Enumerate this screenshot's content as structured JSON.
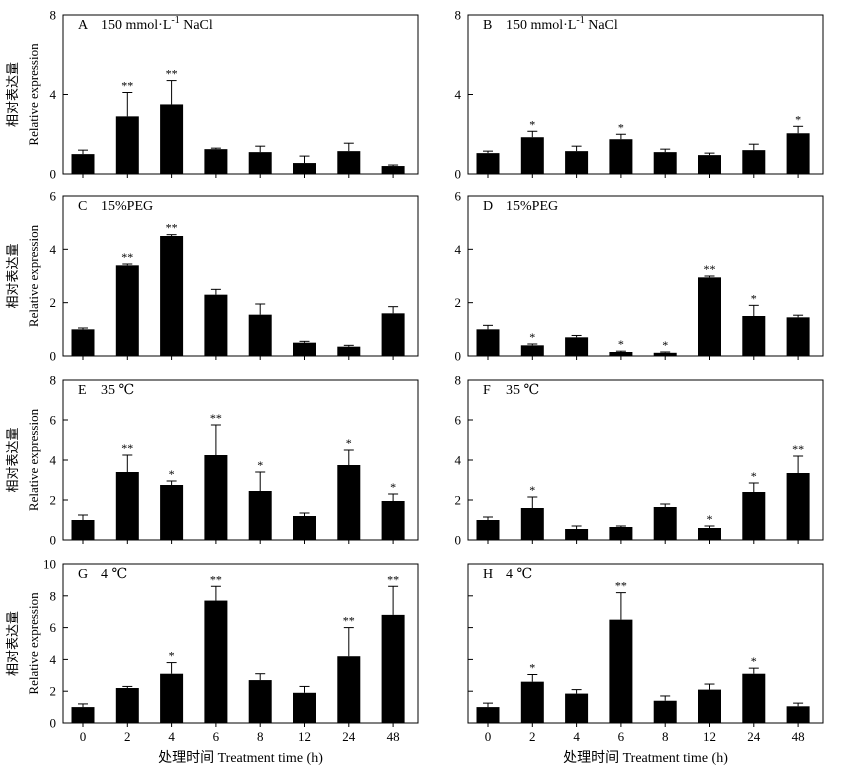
{
  "chart_data": [
    {
      "type": "bar",
      "panel": "A",
      "treatment": "150 mmol·L",
      "sup": "-1",
      "suffix": " NaCl",
      "ylabel_cn": "相对表达量",
      "ylabel_en": "Relative expression",
      "ylim": [
        0,
        8
      ],
      "yticks": [
        "0",
        "4",
        "8"
      ],
      "categories": [
        "0",
        "2",
        "4",
        "6",
        "8",
        "12",
        "24",
        "48"
      ],
      "values": [
        1.0,
        2.9,
        3.5,
        1.25,
        1.1,
        0.55,
        1.15,
        0.4
      ],
      "errors": [
        0.2,
        1.2,
        1.2,
        0.05,
        0.3,
        0.35,
        0.4,
        0.05
      ],
      "significance": [
        "",
        "**",
        "**",
        "",
        "",
        "",
        "",
        ""
      ]
    },
    {
      "type": "bar",
      "panel": "B",
      "treatment": "150 mmol·L",
      "sup": "-1",
      "suffix": " NaCl",
      "ylabel_cn": "",
      "ylabel_en": "",
      "ylim": [
        0,
        8
      ],
      "yticks": [
        "0",
        "4",
        "8"
      ],
      "categories": [
        "0",
        "2",
        "4",
        "6",
        "8",
        "12",
        "24",
        "48"
      ],
      "values": [
        1.05,
        1.85,
        1.15,
        1.75,
        1.1,
        0.95,
        1.2,
        2.05
      ],
      "errors": [
        0.1,
        0.3,
        0.25,
        0.25,
        0.15,
        0.1,
        0.3,
        0.35
      ],
      "significance": [
        "",
        "*",
        "",
        "*",
        "",
        "",
        "",
        "*"
      ]
    },
    {
      "type": "bar",
      "panel": "C",
      "treatment": "15%PEG",
      "sup": "",
      "suffix": "",
      "ylabel_cn": "相对表达量",
      "ylabel_en": "Relative expression",
      "ylim": [
        0,
        6
      ],
      "yticks": [
        "0",
        "2",
        "4",
        "6"
      ],
      "categories": [
        "0",
        "2",
        "4",
        "6",
        "8",
        "12",
        "24",
        "48"
      ],
      "values": [
        1.0,
        3.4,
        4.5,
        2.3,
        1.55,
        0.5,
        0.35,
        1.6
      ],
      "errors": [
        0.05,
        0.05,
        0.05,
        0.2,
        0.4,
        0.05,
        0.05,
        0.25
      ],
      "significance": [
        "",
        "**",
        "**",
        "",
        "",
        "",
        "",
        ""
      ]
    },
    {
      "type": "bar",
      "panel": "D",
      "treatment": "15%PEG",
      "sup": "",
      "suffix": "",
      "ylabel_cn": "",
      "ylabel_en": "",
      "ylim": [
        0,
        6
      ],
      "yticks": [
        "0",
        "2",
        "4",
        "6"
      ],
      "categories": [
        "0",
        "2",
        "4",
        "6",
        "8",
        "12",
        "24",
        "48"
      ],
      "values": [
        1.0,
        0.4,
        0.7,
        0.15,
        0.12,
        2.95,
        1.5,
        1.45
      ],
      "errors": [
        0.15,
        0.05,
        0.07,
        0.03,
        0.03,
        0.05,
        0.4,
        0.08
      ],
      "significance": [
        "",
        "*",
        "",
        "*",
        "*",
        "**",
        "*",
        ""
      ]
    },
    {
      "type": "bar",
      "panel": "E",
      "treatment": "35 ℃",
      "sup": "",
      "suffix": "",
      "ylabel_cn": "相对表达量",
      "ylabel_en": "Relative expression",
      "ylim": [
        0,
        8
      ],
      "yticks": [
        "0",
        "2",
        "4",
        "6",
        "8"
      ],
      "categories": [
        "0",
        "2",
        "4",
        "6",
        "8",
        "12",
        "24",
        "48"
      ],
      "values": [
        1.0,
        3.4,
        2.75,
        4.25,
        2.45,
        1.2,
        3.75,
        1.95
      ],
      "errors": [
        0.25,
        0.85,
        0.2,
        1.5,
        0.95,
        0.15,
        0.75,
        0.35
      ],
      "significance": [
        "",
        "**",
        "*",
        "**",
        "*",
        "",
        "*",
        "*"
      ]
    },
    {
      "type": "bar",
      "panel": "F",
      "treatment": "35 ℃",
      "sup": "",
      "suffix": "",
      "ylabel_cn": "",
      "ylabel_en": "",
      "ylim": [
        0,
        8
      ],
      "yticks": [
        "0",
        "2",
        "4",
        "6",
        "8"
      ],
      "categories": [
        "0",
        "2",
        "4",
        "6",
        "8",
        "12",
        "24",
        "48"
      ],
      "values": [
        1.0,
        1.6,
        0.55,
        0.65,
        1.65,
        0.6,
        2.4,
        3.35
      ],
      "errors": [
        0.15,
        0.55,
        0.15,
        0.05,
        0.15,
        0.1,
        0.45,
        0.85
      ],
      "significance": [
        "",
        "*",
        "",
        "",
        "",
        "*",
        "*",
        "**"
      ]
    },
    {
      "type": "bar",
      "panel": "G",
      "treatment": "4 ℃",
      "sup": "",
      "suffix": "",
      "ylabel_cn": "相对表达量",
      "ylabel_en": "Relative expression",
      "ylim": [
        0,
        10
      ],
      "yticks": [
        "0",
        "2",
        "4",
        "6",
        "8",
        "10"
      ],
      "categories": [
        "0",
        "2",
        "4",
        "6",
        "8",
        "12",
        "24",
        "48"
      ],
      "values": [
        1.0,
        2.2,
        3.1,
        7.7,
        2.7,
        1.9,
        4.2,
        6.8
      ],
      "errors": [
        0.2,
        0.1,
        0.7,
        0.9,
        0.4,
        0.4,
        1.8,
        1.8
      ],
      "significance": [
        "",
        "",
        "*",
        "**",
        "",
        "",
        "**",
        "**"
      ]
    },
    {
      "type": "bar",
      "panel": "H",
      "treatment": "4 ℃",
      "sup": "",
      "suffix": "",
      "ylabel_cn": "",
      "ylabel_en": "",
      "ylim": [
        0,
        10
      ],
      "yticks": [
        "",
        "",
        "",
        "",
        "",
        ""
      ],
      "categories": [
        "0",
        "2",
        "4",
        "6",
        "8",
        "12",
        "24",
        "48"
      ],
      "values": [
        1.0,
        2.6,
        1.85,
        6.5,
        1.4,
        2.1,
        3.1,
        1.05
      ],
      "errors": [
        0.25,
        0.45,
        0.25,
        1.7,
        0.3,
        0.35,
        0.35,
        0.2
      ],
      "significance": [
        "",
        "*",
        "",
        "**",
        "",
        "",
        "*",
        ""
      ]
    }
  ],
  "x_axis_label": "处理时间 Treatment time (h)"
}
